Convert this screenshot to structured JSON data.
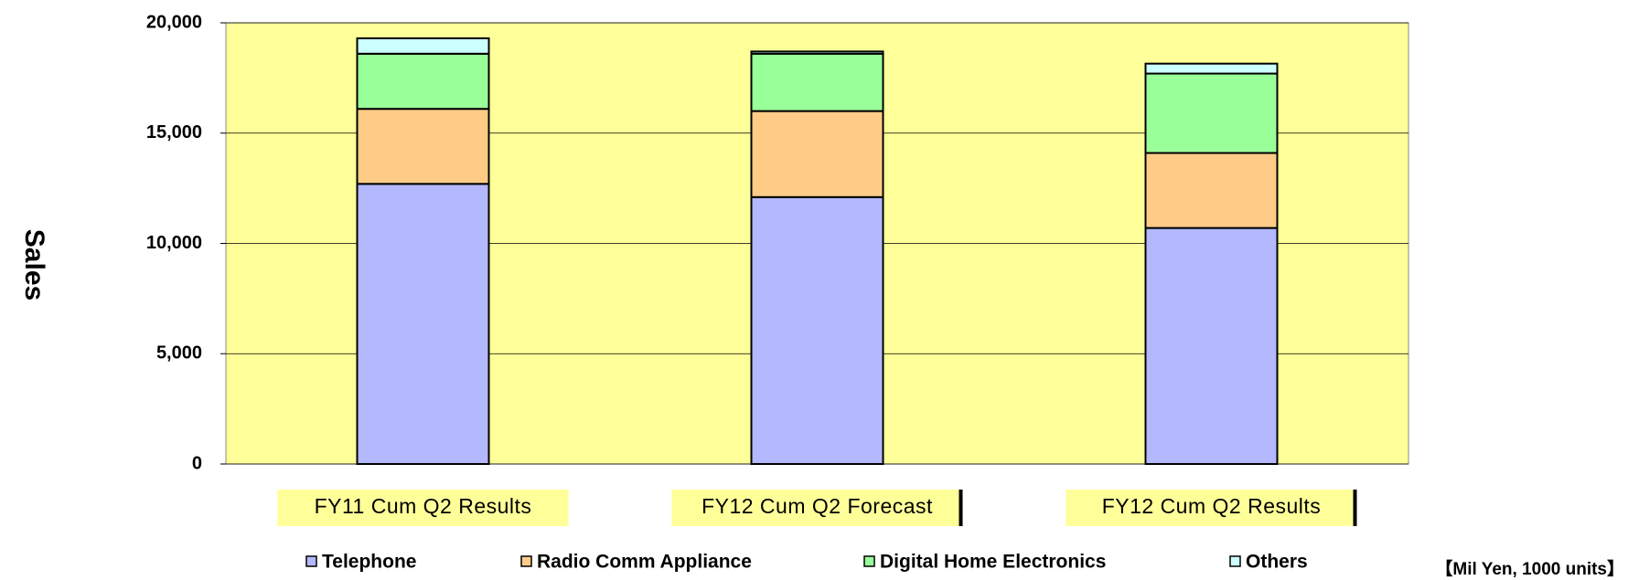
{
  "chart_data": {
    "type": "stacked_bar",
    "y_label": "Sales",
    "unit_note": "【Mil Yen, 1000 units】",
    "categories": [
      "FY11 Cum Q2 Results",
      "FY12 Cum Q2 Forecast",
      "FY12 Cum Q2 Results"
    ],
    "series": [
      {
        "name": "Telephone",
        "color": "#b3b8ff",
        "values": [
          12700,
          12100,
          10700
        ]
      },
      {
        "name": "Radio Comm Appliance",
        "color": "#ffcc88",
        "values": [
          3400,
          3900,
          3400
        ]
      },
      {
        "name": "Digital Home Electronics",
        "color": "#99ff99",
        "values": [
          2500,
          2600,
          3600
        ]
      },
      {
        "name": "Others",
        "color": "#ccffff",
        "values": [
          700,
          100,
          450
        ]
      }
    ],
    "ylim": [
      0,
      20000
    ],
    "yticks": [
      0,
      {
        "value": 5000,
        "label": "5,000"
      },
      {
        "value": 10000,
        "label": "10,000"
      },
      {
        "value": 15000,
        "label": "15,000"
      },
      {
        "value": 20000,
        "label": "20,000"
      }
    ],
    "grid": true,
    "plot_background": "#ffff99"
  }
}
